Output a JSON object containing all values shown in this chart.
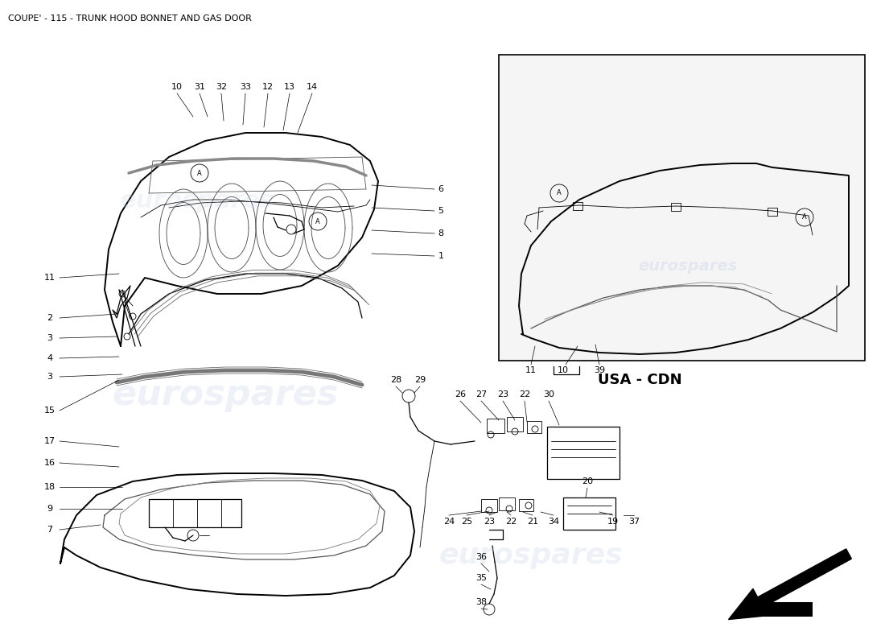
{
  "title": "COUPE' - 115 - TRUNK HOOD BONNET AND GAS DOOR",
  "background_color": "#ffffff",
  "watermark_text": "eurospares",
  "watermark_color": "#c8d4e8",
  "line_color": "#000000",
  "usa_cdn_label": "USA - CDN"
}
